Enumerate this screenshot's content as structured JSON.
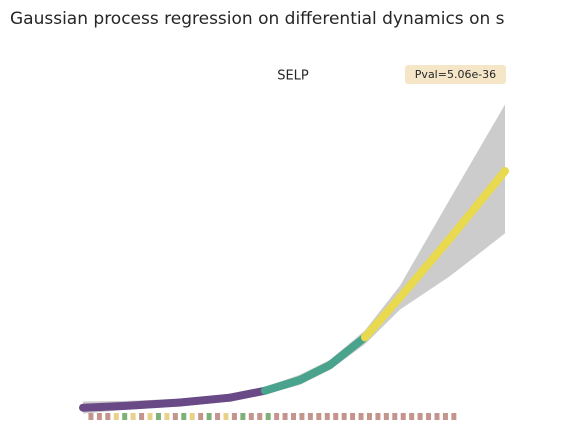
{
  "chart_data": {
    "type": "line",
    "title": "Gaussian process regression on differential dynamics on s",
    "subtitle": "SELP",
    "annotation": "Pval=5.06e-36",
    "annotation_color": "#f5e6c8",
    "band_color": "#cccccc",
    "x": [
      0,
      0.111,
      0.23,
      0.348,
      0.431,
      0.514,
      0.585,
      0.668,
      0.751,
      0.87,
      1
    ],
    "xlim": [
      0,
      1
    ],
    "ylim": [
      -0.01,
      1.0
    ],
    "series": [
      {
        "values": [
          0.011,
          0.017,
          0.026,
          0.04,
          0.06,
          0.091,
          0.134,
          0.214,
          0.329,
          0.5,
          0.694
        ],
        "upper": [
          0.029,
          0.031,
          0.037,
          0.051,
          0.071,
          0.106,
          0.149,
          0.234,
          0.363,
          0.614,
          0.886
        ],
        "lower": [
          -0.006,
          0.006,
          0.014,
          0.029,
          0.049,
          0.077,
          0.12,
          0.194,
          0.294,
          0.391,
          0.514
        ],
        "segment_colors": [
          "#6a4a86",
          "#6a4a86",
          "#6a4a86",
          "#6a4a86",
          "#4aa38c",
          "#4aa38c",
          "#4aa38c",
          "#e8d94e",
          "#e8d94e",
          "#e8d94e"
        ]
      }
    ],
    "rug": {
      "x": [
        0.02,
        0.04,
        0.06,
        0.08,
        0.1,
        0.12,
        0.14,
        0.16,
        0.18,
        0.2,
        0.22,
        0.24,
        0.26,
        0.28,
        0.3,
        0.32,
        0.34,
        0.36,
        0.38,
        0.4,
        0.42,
        0.44,
        0.46,
        0.48,
        0.5,
        0.52,
        0.54,
        0.56,
        0.58,
        0.6,
        0.62,
        0.64,
        0.66,
        0.68,
        0.7,
        0.72,
        0.74,
        0.76,
        0.78,
        0.8,
        0.82,
        0.84,
        0.86,
        0.88
      ],
      "colors": [
        "#c4958c",
        "#c4958c",
        "#c4958c",
        "#e8d28a",
        "#7fb07a",
        "#e8d28a",
        "#c4958c",
        "#e8d28a",
        "#7fb07a",
        "#e8d28a",
        "#c4958c",
        "#7fb07a",
        "#e8d28a",
        "#c4958c",
        "#7fb07a",
        "#c4958c",
        "#e8d28a",
        "#c4958c",
        "#7fb07a",
        "#c4958c",
        "#c4958c",
        "#7fb07a",
        "#c4958c",
        "#c4958c",
        "#c4958c",
        "#c4958c",
        "#c4958c",
        "#c4958c",
        "#c4958c",
        "#c4958c",
        "#c4958c",
        "#c4958c",
        "#c4958c",
        "#c4958c",
        "#c4958c",
        "#c4958c",
        "#c4958c",
        "#c4958c",
        "#c4958c",
        "#c4958c",
        "#c4958c",
        "#c4958c",
        "#c4958c",
        "#c4958c"
      ]
    }
  }
}
